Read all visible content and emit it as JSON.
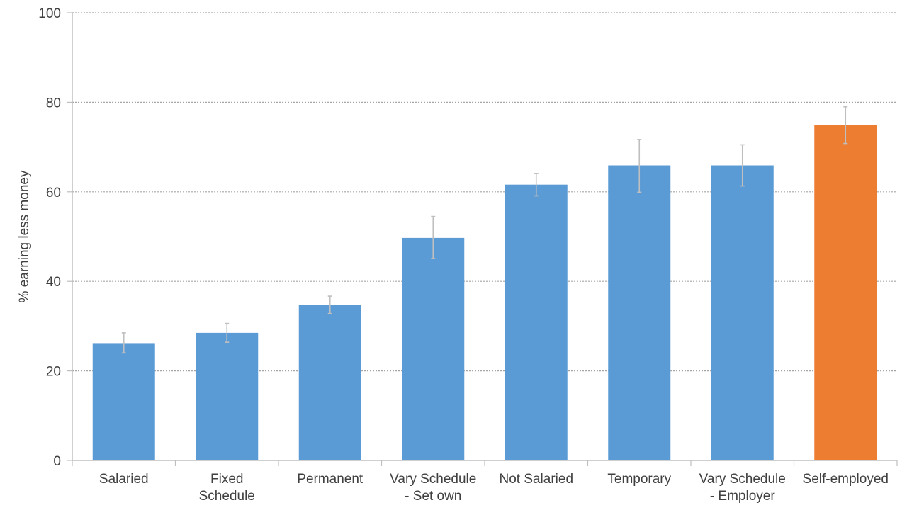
{
  "chart_data": {
    "type": "bar",
    "title": "",
    "xlabel": "",
    "ylabel": "% earning less money",
    "ylim": [
      0,
      100
    ],
    "yticks": [
      0,
      20,
      40,
      60,
      80,
      100
    ],
    "grid": true,
    "categories": [
      [
        "Salaried"
      ],
      [
        "Fixed",
        "Schedule"
      ],
      [
        "Permanent"
      ],
      [
        "Vary Schedule",
        "- Set own"
      ],
      [
        "Not Salaried"
      ],
      [
        "Temporary"
      ],
      [
        "Vary Schedule",
        "- Employer"
      ],
      [
        "Self-employed"
      ]
    ],
    "values": [
      26.2,
      28.5,
      34.7,
      49.7,
      61.6,
      65.9,
      65.9,
      74.9
    ],
    "error_low": [
      24.0,
      26.4,
      32.8,
      45.1,
      59.1,
      59.9,
      61.3,
      70.8
    ],
    "error_high": [
      28.5,
      30.6,
      36.7,
      54.5,
      64.1,
      71.7,
      70.5,
      79.0
    ],
    "colors": [
      "#5B9BD5",
      "#5B9BD5",
      "#5B9BD5",
      "#5B9BD5",
      "#5B9BD5",
      "#5B9BD5",
      "#5B9BD5",
      "#ED7D31"
    ],
    "error_bar_color": "#BFBFBF",
    "gridline_color": "#A6A6A6",
    "axis_color": "#BFBFBF"
  }
}
